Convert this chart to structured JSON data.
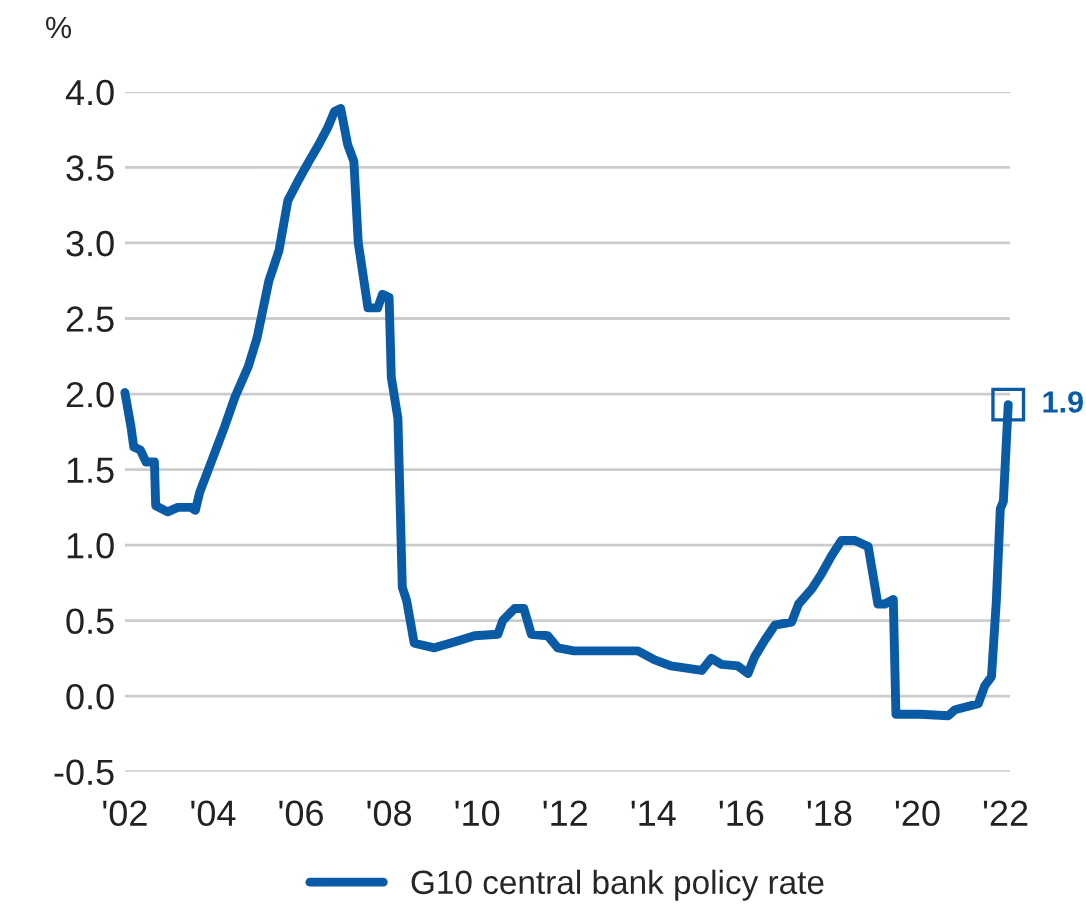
{
  "chart_data": {
    "type": "line",
    "ylabel": "%",
    "xlim": [
      2002,
      2022.1
    ],
    "xticks": [
      {
        "value": 2002,
        "label": "'02"
      },
      {
        "value": 2004,
        "label": "'04"
      },
      {
        "value": 2006,
        "label": "'06"
      },
      {
        "value": 2008,
        "label": "'08"
      },
      {
        "value": 2010,
        "label": "'10"
      },
      {
        "value": 2012,
        "label": "'12"
      },
      {
        "value": 2014,
        "label": "'14"
      },
      {
        "value": 2016,
        "label": "'16"
      },
      {
        "value": 2018,
        "label": "'18"
      },
      {
        "value": 2020,
        "label": "'20"
      },
      {
        "value": 2022,
        "label": "'22"
      }
    ],
    "ylim": [
      -0.5,
      4.0
    ],
    "yticks": [
      {
        "value": -0.5,
        "label": "-0.5"
      },
      {
        "value": 0.0,
        "label": "0.0"
      },
      {
        "value": 0.5,
        "label": "0.5"
      },
      {
        "value": 1.0,
        "label": "1.0"
      },
      {
        "value": 1.5,
        "label": "1.5"
      },
      {
        "value": 2.0,
        "label": "2.0"
      },
      {
        "value": 2.5,
        "label": "2.5"
      },
      {
        "value": 3.0,
        "label": "3.0"
      },
      {
        "value": 3.5,
        "label": "3.5"
      },
      {
        "value": 4.0,
        "label": "4.0"
      }
    ],
    "grid": "y",
    "legend": "bottom",
    "series": [
      {
        "name": "G10 central bank policy rate",
        "color": "#0a5ba6",
        "x": [
          2002.0,
          2002.14,
          2002.2,
          2002.35,
          2002.48,
          2002.67,
          2002.7,
          2002.97,
          2003.2,
          2003.5,
          2003.6,
          2003.7,
          2004.0,
          2004.26,
          2004.5,
          2004.8,
          2005.0,
          2005.27,
          2005.5,
          2005.7,
          2005.95,
          2006.18,
          2006.4,
          2006.6,
          2006.76,
          2006.9,
          2007.06,
          2007.2,
          2007.3,
          2007.52,
          2007.74,
          2007.85,
          2008.0,
          2008.05,
          2008.2,
          2008.3,
          2008.4,
          2008.57,
          2009.03,
          2009.5,
          2009.94,
          2010.47,
          2010.58,
          2010.85,
          2011.06,
          2011.23,
          2011.6,
          2011.83,
          2012.2,
          2013.65,
          2014.03,
          2014.4,
          2015.1,
          2015.32,
          2015.55,
          2015.92,
          2016.15,
          2016.3,
          2016.53,
          2016.76,
          2017.14,
          2017.3,
          2017.6,
          2017.82,
          2018.05,
          2018.27,
          2018.58,
          2018.88,
          2019.1,
          2019.26,
          2019.45,
          2019.51,
          2020.07,
          2020.7,
          2020.85,
          2021.38,
          2021.53,
          2021.68,
          2021.79,
          2021.88,
          2021.95,
          2022.06
        ],
        "values": [
          2.01,
          1.78,
          1.65,
          1.63,
          1.55,
          1.55,
          1.26,
          1.22,
          1.25,
          1.25,
          1.23,
          1.35,
          1.58,
          1.78,
          1.98,
          2.18,
          2.37,
          2.75,
          2.95,
          3.28,
          3.42,
          3.54,
          3.65,
          3.76,
          3.87,
          3.89,
          3.65,
          3.54,
          3.0,
          2.57,
          2.57,
          2.66,
          2.64,
          2.11,
          1.84,
          0.72,
          0.63,
          0.35,
          0.32,
          0.36,
          0.4,
          0.41,
          0.5,
          0.58,
          0.58,
          0.41,
          0.4,
          0.32,
          0.3,
          0.3,
          0.24,
          0.2,
          0.17,
          0.25,
          0.21,
          0.2,
          0.15,
          0.26,
          0.37,
          0.47,
          0.49,
          0.61,
          0.71,
          0.81,
          0.93,
          1.03,
          1.03,
          0.99,
          0.61,
          0.61,
          0.64,
          -0.12,
          -0.12,
          -0.13,
          -0.09,
          -0.05,
          0.07,
          0.13,
          0.63,
          1.24,
          1.29,
          1.93
        ]
      }
    ],
    "annotations": [
      {
        "text": "1.9",
        "x": 2022.06,
        "y": 1.93
      }
    ]
  }
}
